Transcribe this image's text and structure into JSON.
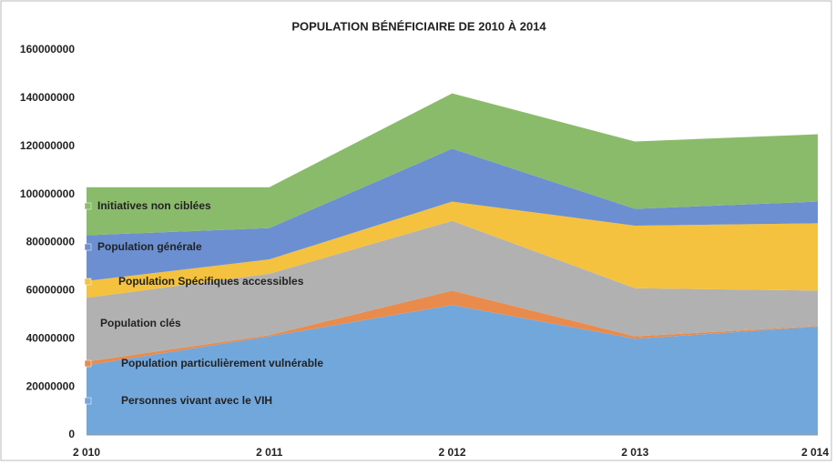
{
  "chart_data": {
    "type": "stacked_area",
    "title": "POPULATION BÉNÉFICIAIRE DE 2010 À 2014",
    "categories": [
      "2 010",
      "2 011",
      "2 012",
      "2 013",
      "2 014"
    ],
    "series": [
      {
        "name": "Personnes vivant avec le VIH",
        "color": "#72a7dc",
        "values": [
          29000000,
          41000000,
          54000000,
          40000000,
          45000000
        ]
      },
      {
        "name": "Population particulièrement vulnérable",
        "color": "#e98b4c",
        "values": [
          1500000,
          500000,
          6000000,
          1000000,
          300000
        ]
      },
      {
        "name": "Population clés",
        "color": "#b1b1b1",
        "values": [
          26500000,
          25500000,
          29000000,
          20000000,
          14700000
        ]
      },
      {
        "name": "Population Spécifiques accessibles",
        "color": "#f4c23f",
        "values": [
          7000000,
          6000000,
          8000000,
          26000000,
          28000000
        ]
      },
      {
        "name": "Population générale",
        "color": "#6b8fd1",
        "values": [
          19000000,
          13000000,
          22000000,
          7000000,
          9000000
        ]
      },
      {
        "name": "Initiatives non ciblées",
        "color": "#8abb6b",
        "values": [
          20000000,
          17000000,
          23000000,
          28000000,
          28000000
        ]
      }
    ],
    "ylim": [
      0,
      160000000
    ],
    "yticks": [
      0,
      20000000,
      40000000,
      60000000,
      80000000,
      100000000,
      120000000,
      140000000,
      160000000
    ],
    "grid": false
  }
}
